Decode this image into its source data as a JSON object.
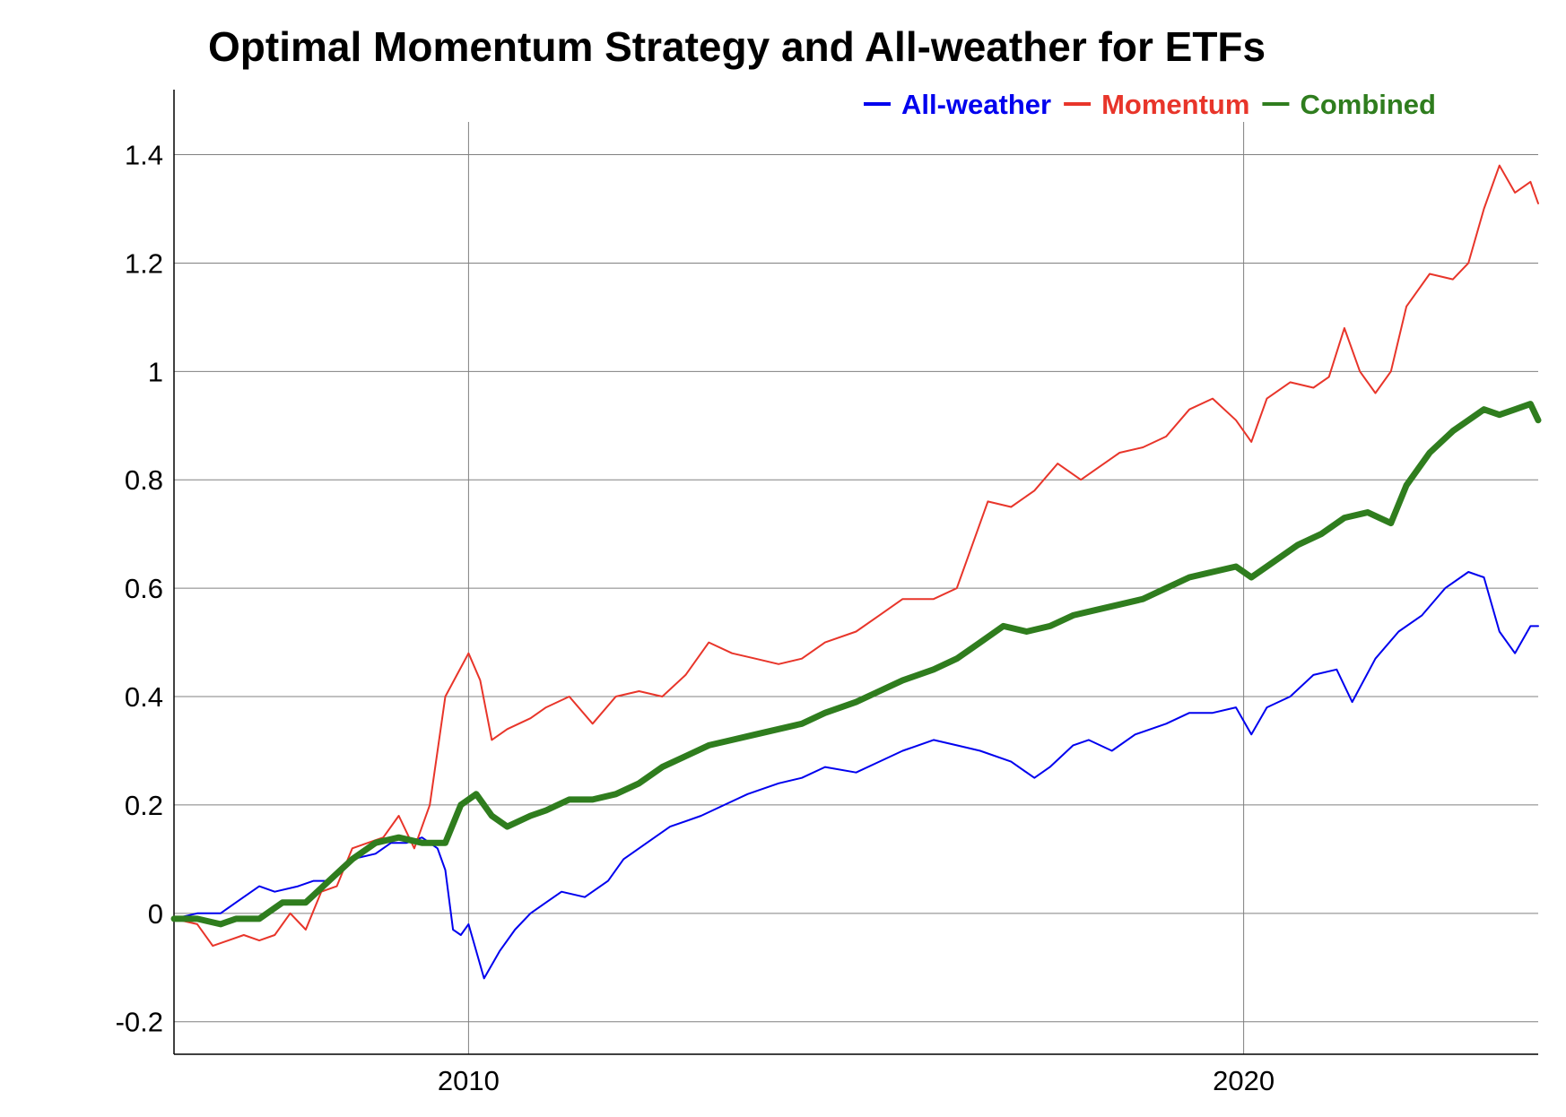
{
  "chart_data": {
    "type": "line",
    "title": "Optimal Momentum Strategy and All-weather for ETFs",
    "xlabel": "",
    "ylabel": "",
    "xlim": [
      2006.2,
      2023.8
    ],
    "ylim": [
      -0.26,
      1.52
    ],
    "x_ticks": [
      {
        "value": 2010,
        "label": "2010"
      },
      {
        "value": 2020,
        "label": "2020"
      }
    ],
    "y_ticks": [
      {
        "value": -0.2,
        "label": "-0.2"
      },
      {
        "value": 0,
        "label": "0"
      },
      {
        "value": 0.2,
        "label": "0.2"
      },
      {
        "value": 0.4,
        "label": "0.4"
      },
      {
        "value": 0.6,
        "label": "0.6"
      },
      {
        "value": 0.8,
        "label": "0.8"
      },
      {
        "value": 1.0,
        "label": "1"
      },
      {
        "value": 1.2,
        "label": "1.2"
      },
      {
        "value": 1.4,
        "label": "1.4"
      }
    ],
    "grid": true,
    "legend": "top-right",
    "series": [
      {
        "name": "All-weather",
        "color": "#0000ee",
        "width": 2,
        "points": [
          [
            2006.2,
            -0.01
          ],
          [
            2006.5,
            0.0
          ],
          [
            2006.8,
            0.0
          ],
          [
            2007.0,
            0.02
          ],
          [
            2007.3,
            0.05
          ],
          [
            2007.5,
            0.04
          ],
          [
            2007.8,
            0.05
          ],
          [
            2008.0,
            0.06
          ],
          [
            2008.2,
            0.06
          ],
          [
            2008.5,
            0.1
          ],
          [
            2008.8,
            0.11
          ],
          [
            2009.0,
            0.13
          ],
          [
            2009.2,
            0.13
          ],
          [
            2009.4,
            0.14
          ],
          [
            2009.6,
            0.12
          ],
          [
            2009.7,
            0.08
          ],
          [
            2009.8,
            -0.03
          ],
          [
            2009.9,
            -0.04
          ],
          [
            2010.0,
            -0.02
          ],
          [
            2010.2,
            -0.12
          ],
          [
            2010.4,
            -0.07
          ],
          [
            2010.6,
            -0.03
          ],
          [
            2010.8,
            0.0
          ],
          [
            2011.0,
            0.02
          ],
          [
            2011.2,
            0.04
          ],
          [
            2011.5,
            0.03
          ],
          [
            2011.8,
            0.06
          ],
          [
            2012.0,
            0.1
          ],
          [
            2012.3,
            0.13
          ],
          [
            2012.6,
            0.16
          ],
          [
            2013.0,
            0.18
          ],
          [
            2013.3,
            0.2
          ],
          [
            2013.6,
            0.22
          ],
          [
            2014.0,
            0.24
          ],
          [
            2014.3,
            0.25
          ],
          [
            2014.6,
            0.27
          ],
          [
            2015.0,
            0.26
          ],
          [
            2015.3,
            0.28
          ],
          [
            2015.6,
            0.3
          ],
          [
            2016.0,
            0.32
          ],
          [
            2016.3,
            0.31
          ],
          [
            2016.6,
            0.3
          ],
          [
            2017.0,
            0.28
          ],
          [
            2017.3,
            0.25
          ],
          [
            2017.5,
            0.27
          ],
          [
            2017.8,
            0.31
          ],
          [
            2018.0,
            0.32
          ],
          [
            2018.3,
            0.3
          ],
          [
            2018.6,
            0.33
          ],
          [
            2019.0,
            0.35
          ],
          [
            2019.3,
            0.37
          ],
          [
            2019.6,
            0.37
          ],
          [
            2019.9,
            0.38
          ],
          [
            2020.1,
            0.33
          ],
          [
            2020.3,
            0.38
          ],
          [
            2020.6,
            0.4
          ],
          [
            2020.9,
            0.44
          ],
          [
            2021.2,
            0.45
          ],
          [
            2021.4,
            0.39
          ],
          [
            2021.7,
            0.47
          ],
          [
            2022.0,
            0.52
          ],
          [
            2022.3,
            0.55
          ],
          [
            2022.6,
            0.6
          ],
          [
            2022.9,
            0.63
          ],
          [
            2023.1,
            0.62
          ],
          [
            2023.3,
            0.52
          ],
          [
            2023.5,
            0.48
          ],
          [
            2023.7,
            0.53
          ],
          [
            2023.8,
            0.53
          ]
        ]
      },
      {
        "name": "Momentum",
        "color": "#e8352a",
        "width": 2,
        "points": [
          [
            2006.2,
            -0.01
          ],
          [
            2006.5,
            -0.02
          ],
          [
            2006.7,
            -0.06
          ],
          [
            2006.9,
            -0.05
          ],
          [
            2007.1,
            -0.04
          ],
          [
            2007.3,
            -0.05
          ],
          [
            2007.5,
            -0.04
          ],
          [
            2007.7,
            0.0
          ],
          [
            2007.9,
            -0.03
          ],
          [
            2008.1,
            0.04
          ],
          [
            2008.3,
            0.05
          ],
          [
            2008.5,
            0.12
          ],
          [
            2008.7,
            0.13
          ],
          [
            2008.9,
            0.14
          ],
          [
            2009.1,
            0.18
          ],
          [
            2009.3,
            0.12
          ],
          [
            2009.5,
            0.2
          ],
          [
            2009.7,
            0.4
          ],
          [
            2009.85,
            0.44
          ],
          [
            2010.0,
            0.48
          ],
          [
            2010.15,
            0.43
          ],
          [
            2010.3,
            0.32
          ],
          [
            2010.5,
            0.34
          ],
          [
            2010.8,
            0.36
          ],
          [
            2011.0,
            0.38
          ],
          [
            2011.3,
            0.4
          ],
          [
            2011.6,
            0.35
          ],
          [
            2011.9,
            0.4
          ],
          [
            2012.2,
            0.41
          ],
          [
            2012.5,
            0.4
          ],
          [
            2012.8,
            0.44
          ],
          [
            2013.1,
            0.5
          ],
          [
            2013.4,
            0.48
          ],
          [
            2013.7,
            0.47
          ],
          [
            2014.0,
            0.46
          ],
          [
            2014.3,
            0.47
          ],
          [
            2014.6,
            0.5
          ],
          [
            2015.0,
            0.52
          ],
          [
            2015.3,
            0.55
          ],
          [
            2015.6,
            0.58
          ],
          [
            2016.0,
            0.58
          ],
          [
            2016.3,
            0.6
          ],
          [
            2016.5,
            0.68
          ],
          [
            2016.7,
            0.76
          ],
          [
            2017.0,
            0.75
          ],
          [
            2017.3,
            0.78
          ],
          [
            2017.6,
            0.83
          ],
          [
            2017.9,
            0.8
          ],
          [
            2018.1,
            0.82
          ],
          [
            2018.4,
            0.85
          ],
          [
            2018.7,
            0.86
          ],
          [
            2019.0,
            0.88
          ],
          [
            2019.3,
            0.93
          ],
          [
            2019.6,
            0.95
          ],
          [
            2019.9,
            0.91
          ],
          [
            2020.1,
            0.87
          ],
          [
            2020.3,
            0.95
          ],
          [
            2020.6,
            0.98
          ],
          [
            2020.9,
            0.97
          ],
          [
            2021.1,
            0.99
          ],
          [
            2021.3,
            1.08
          ],
          [
            2021.5,
            1.0
          ],
          [
            2021.7,
            0.96
          ],
          [
            2021.9,
            1.0
          ],
          [
            2022.1,
            1.12
          ],
          [
            2022.4,
            1.18
          ],
          [
            2022.7,
            1.17
          ],
          [
            2022.9,
            1.2
          ],
          [
            2023.1,
            1.3
          ],
          [
            2023.3,
            1.38
          ],
          [
            2023.5,
            1.33
          ],
          [
            2023.7,
            1.35
          ],
          [
            2023.8,
            1.31
          ]
        ]
      },
      {
        "name": "Combined",
        "color": "#2f7d1e",
        "width": 7,
        "points": [
          [
            2006.2,
            -0.01
          ],
          [
            2006.5,
            -0.01
          ],
          [
            2006.8,
            -0.02
          ],
          [
            2007.0,
            -0.01
          ],
          [
            2007.3,
            -0.01
          ],
          [
            2007.6,
            0.02
          ],
          [
            2007.9,
            0.02
          ],
          [
            2008.2,
            0.06
          ],
          [
            2008.5,
            0.1
          ],
          [
            2008.8,
            0.13
          ],
          [
            2009.1,
            0.14
          ],
          [
            2009.4,
            0.13
          ],
          [
            2009.7,
            0.13
          ],
          [
            2009.9,
            0.2
          ],
          [
            2010.1,
            0.22
          ],
          [
            2010.3,
            0.18
          ],
          [
            2010.5,
            0.16
          ],
          [
            2010.8,
            0.18
          ],
          [
            2011.0,
            0.19
          ],
          [
            2011.3,
            0.21
          ],
          [
            2011.6,
            0.21
          ],
          [
            2011.9,
            0.22
          ],
          [
            2012.2,
            0.24
          ],
          [
            2012.5,
            0.27
          ],
          [
            2012.8,
            0.29
          ],
          [
            2013.1,
            0.31
          ],
          [
            2013.4,
            0.32
          ],
          [
            2013.7,
            0.33
          ],
          [
            2014.0,
            0.34
          ],
          [
            2014.3,
            0.35
          ],
          [
            2014.6,
            0.37
          ],
          [
            2015.0,
            0.39
          ],
          [
            2015.3,
            0.41
          ],
          [
            2015.6,
            0.43
          ],
          [
            2016.0,
            0.45
          ],
          [
            2016.3,
            0.47
          ],
          [
            2016.6,
            0.5
          ],
          [
            2016.9,
            0.53
          ],
          [
            2017.2,
            0.52
          ],
          [
            2017.5,
            0.53
          ],
          [
            2017.8,
            0.55
          ],
          [
            2018.1,
            0.56
          ],
          [
            2018.4,
            0.57
          ],
          [
            2018.7,
            0.58
          ],
          [
            2019.0,
            0.6
          ],
          [
            2019.3,
            0.62
          ],
          [
            2019.6,
            0.63
          ],
          [
            2019.9,
            0.64
          ],
          [
            2020.1,
            0.62
          ],
          [
            2020.4,
            0.65
          ],
          [
            2020.7,
            0.68
          ],
          [
            2021.0,
            0.7
          ],
          [
            2021.3,
            0.73
          ],
          [
            2021.6,
            0.74
          ],
          [
            2021.9,
            0.72
          ],
          [
            2022.1,
            0.79
          ],
          [
            2022.4,
            0.85
          ],
          [
            2022.7,
            0.89
          ],
          [
            2022.9,
            0.91
          ],
          [
            2023.1,
            0.93
          ],
          [
            2023.3,
            0.92
          ],
          [
            2023.5,
            0.93
          ],
          [
            2023.7,
            0.94
          ],
          [
            2023.8,
            0.91
          ]
        ]
      }
    ]
  }
}
